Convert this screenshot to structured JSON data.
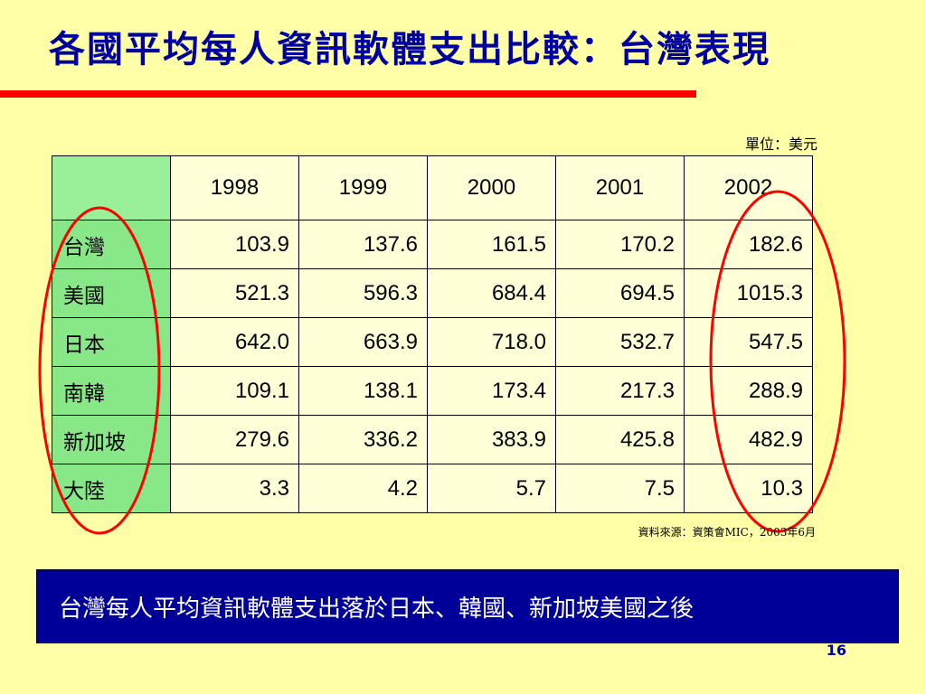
{
  "slide": {
    "title": "各國平均每人資訊軟體支出比較：台灣表現",
    "unit": "單位：美元",
    "source": "資料來源：資策會MIC，2003年6月",
    "banner_text": "台灣每人平均資訊軟體支出落於日本、韓國、新加坡美國之後",
    "page_number": "16"
  },
  "colors": {
    "background": "#FFFFA8",
    "title": "#0000A0",
    "rule": "#FF0000",
    "row_header": "#88E888",
    "cell": "#FFFFD8",
    "banner": "#000099",
    "circle": "#FF0000"
  },
  "table": {
    "columns": [
      "1998",
      "1999",
      "2000",
      "2001",
      "2002"
    ],
    "rows": [
      {
        "label": "台灣",
        "values": [
          "103.9",
          "137.6",
          "161.5",
          "170.2",
          "182.6"
        ]
      },
      {
        "label": "美國",
        "values": [
          "521.3",
          "596.3",
          "684.4",
          "694.5",
          "1015.3"
        ]
      },
      {
        "label": "日本",
        "values": [
          "642.0",
          "663.9",
          "718.0",
          "532.7",
          "547.5"
        ]
      },
      {
        "label": "南韓",
        "values": [
          "109.1",
          "138.1",
          "173.4",
          "217.3",
          "288.9"
        ]
      },
      {
        "label": "新加坡",
        "values": [
          "279.6",
          "336.2",
          "383.9",
          "425.8",
          "482.9"
        ]
      },
      {
        "label": "大陸",
        "values": [
          "3.3",
          "4.2",
          "5.7",
          "7.5",
          "10.3"
        ]
      }
    ]
  }
}
